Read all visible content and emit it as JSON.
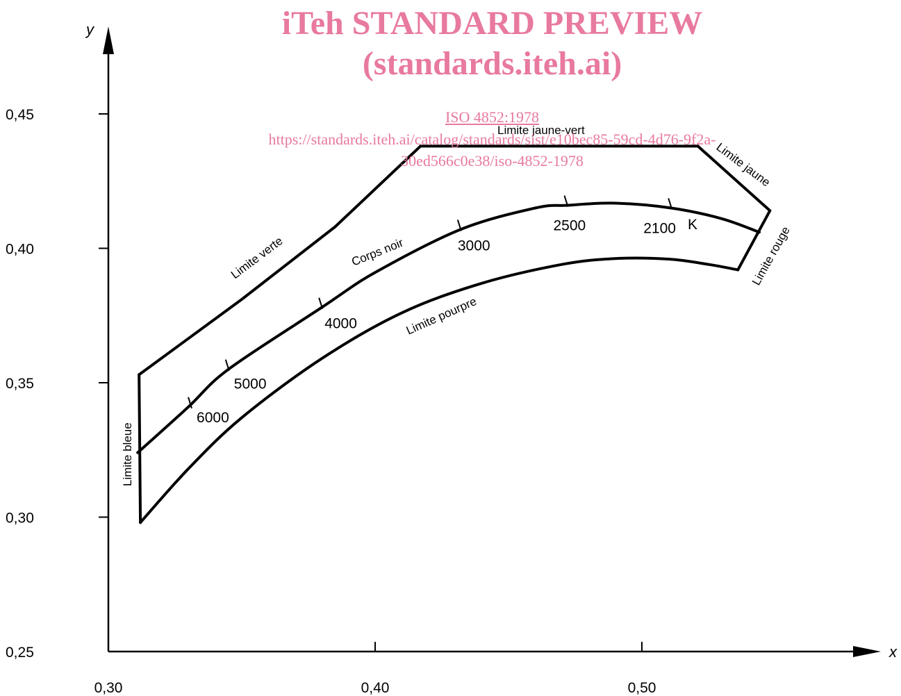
{
  "watermark": {
    "title": "iTeh STANDARD PREVIEW",
    "subtitle": "(standards.iteh.ai)",
    "doc_id": "ISO 4852:1978",
    "url_line1": "https://standards.iteh.ai/catalog/standards/sist/e10bec85-59cd-4d76-9f2a-",
    "url_line2": "30ed566c0e38/iso-4852-1978"
  },
  "chart_data": {
    "type": "line",
    "xlabel": "x",
    "ylabel": "y",
    "xlim": [
      0.3,
      0.58
    ],
    "ylim": [
      0.25,
      0.47
    ],
    "x_ticks": [
      0.3,
      0.4,
      0.5
    ],
    "x_tick_labels": [
      "0,30",
      "0,40",
      "0,50"
    ],
    "y_ticks": [
      0.25,
      0.3,
      0.35,
      0.4,
      0.45
    ],
    "y_tick_labels": [
      "0,25",
      "0,30",
      "0,35",
      "0,40",
      "0,45"
    ],
    "series": [
      {
        "name": "Corps noir",
        "points": [
          [
            0.311,
            0.324
          ],
          [
            0.33,
            0.341
          ],
          [
            0.345,
            0.355
          ],
          [
            0.38,
            0.378
          ],
          [
            0.4,
            0.391
          ],
          [
            0.432,
            0.407
          ],
          [
            0.46,
            0.415
          ],
          [
            0.472,
            0.416
          ],
          [
            0.49,
            0.4168
          ],
          [
            0.511,
            0.415
          ],
          [
            0.53,
            0.411
          ],
          [
            0.544,
            0.406
          ]
        ]
      },
      {
        "name": "Limite pourpre",
        "points": [
          [
            0.312,
            0.298
          ],
          [
            0.33,
            0.318
          ],
          [
            0.35,
            0.337
          ],
          [
            0.38,
            0.359
          ],
          [
            0.41,
            0.376
          ],
          [
            0.44,
            0.387
          ],
          [
            0.47,
            0.394
          ],
          [
            0.49,
            0.3962
          ],
          [
            0.51,
            0.396
          ],
          [
            0.525,
            0.394
          ],
          [
            0.536,
            0.392
          ]
        ]
      },
      {
        "name": "Limite verte",
        "points": [
          [
            0.3115,
            0.353
          ],
          [
            0.35,
            0.381
          ],
          [
            0.385,
            0.408
          ],
          [
            0.417,
            0.438
          ]
        ]
      },
      {
        "name": "Limite jaune-vert",
        "points": [
          [
            0.417,
            0.438
          ],
          [
            0.521,
            0.438
          ]
        ]
      },
      {
        "name": "Limite jaune",
        "points": [
          [
            0.521,
            0.438
          ],
          [
            0.548,
            0.414
          ]
        ]
      },
      {
        "name": "Limite rouge",
        "points": [
          [
            0.548,
            0.414
          ],
          [
            0.536,
            0.392
          ]
        ]
      },
      {
        "name": "Limite bleue",
        "points": [
          [
            0.3115,
            0.353
          ],
          [
            0.312,
            0.298
          ]
        ]
      }
    ],
    "temperature_marks": [
      {
        "label": "6000",
        "x": 0.331,
        "y": 0.341
      },
      {
        "label": "5000",
        "x": 0.345,
        "y": 0.355
      },
      {
        "label": "4000",
        "x": 0.38,
        "y": 0.378
      },
      {
        "label": "3000",
        "x": 0.432,
        "y": 0.407
      },
      {
        "label": "2500",
        "x": 0.472,
        "y": 0.416
      },
      {
        "label": "2100",
        "x": 0.511,
        "y": 0.415
      }
    ],
    "temperature_unit": "K",
    "boundary_labels": {
      "verte": "Limite verte",
      "jaune_vert": "Limite jaune-vert",
      "jaune": "Limite jaune",
      "rouge": "Limite rouge",
      "bleue": "Limite bleue",
      "pourpre": "Limite pourpre",
      "corps_noir": "Corps noir"
    }
  }
}
